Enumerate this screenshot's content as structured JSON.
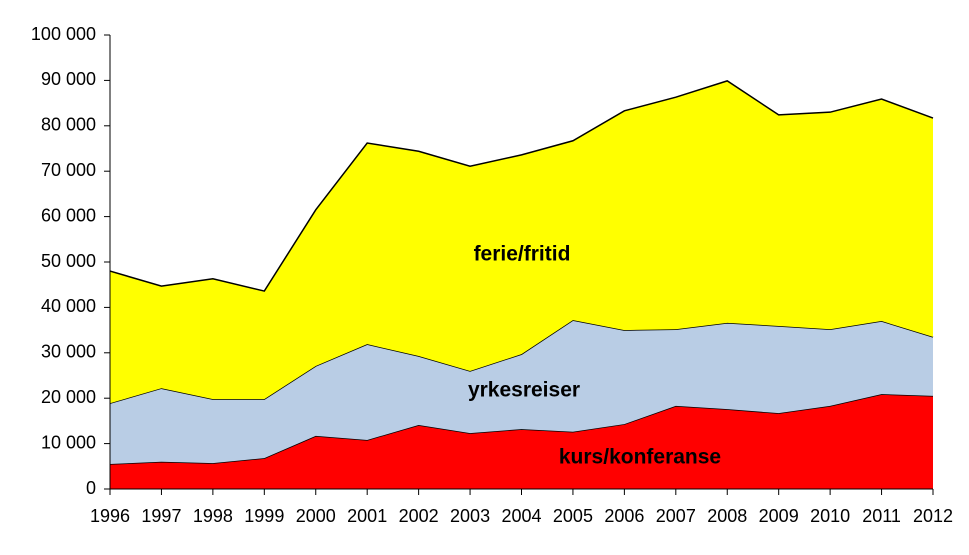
{
  "chart_data": {
    "type": "stacked_area",
    "x": [
      1996,
      1997,
      1998,
      1999,
      2000,
      2001,
      2002,
      2003,
      2004,
      2005,
      2006,
      2007,
      2008,
      2009,
      2010,
      2011,
      2012
    ],
    "xlim": [
      1996,
      2012
    ],
    "xticks": [
      1996,
      1997,
      1998,
      1999,
      2000,
      2001,
      2002,
      2003,
      2004,
      2005,
      2006,
      2007,
      2008,
      2009,
      2010,
      2011,
      2012
    ],
    "ylim": [
      0,
      100000
    ],
    "yticks": [
      0,
      {
        "value": 10000,
        "label": "10 000"
      },
      {
        "value": 20000,
        "label": "20 000"
      },
      {
        "value": 30000,
        "label": "30 000"
      },
      {
        "value": 40000,
        "label": "40 000"
      },
      {
        "value": 50000,
        "label": "50 000"
      },
      {
        "value": 60000,
        "label": "60 000"
      },
      {
        "value": 70000,
        "label": "70 000"
      },
      {
        "value": 80000,
        "label": "80 000"
      },
      {
        "value": 90000,
        "label": "90 000"
      },
      {
        "value": 100000,
        "label": "100 000"
      }
    ],
    "series": [
      {
        "name": "kurs/konferanse",
        "color": "#ff0000",
        "values": [
          5500,
          6000,
          5700,
          6800,
          11700,
          10800,
          14100,
          12300,
          13200,
          12600,
          14300,
          18300,
          17600,
          16700,
          18300,
          20900,
          20500
        ]
      },
      {
        "name": "yrkesreiser",
        "color": "#b9cde5",
        "values": [
          13400,
          16200,
          14100,
          13000,
          15400,
          21100,
          15200,
          13700,
          16500,
          24600,
          20700,
          16900,
          19000,
          19200,
          16900,
          16100,
          13000
        ]
      },
      {
        "name": "ferie/fritid",
        "color": "#ffff00",
        "values": [
          29100,
          22500,
          26500,
          23800,
          34400,
          44300,
          45100,
          45100,
          43900,
          39500,
          48300,
          51100,
          53300,
          46500,
          47800,
          48900,
          48200
        ]
      }
    ]
  }
}
